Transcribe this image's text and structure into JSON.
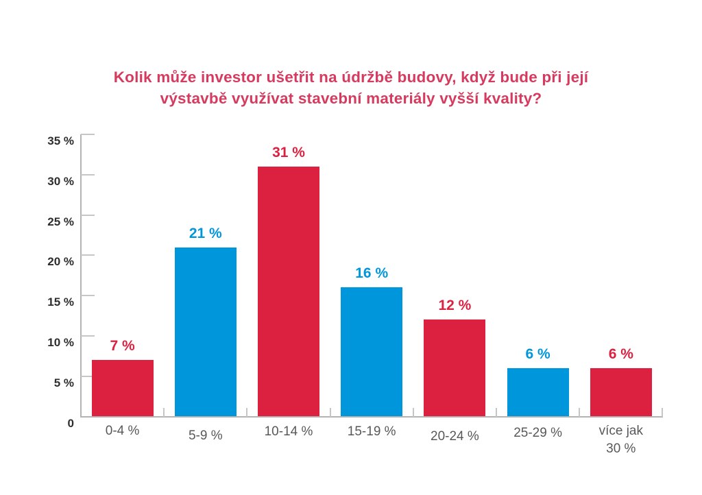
{
  "title": {
    "lines": [
      "Kolik může investor ušetřit na údržbě budovy, když bude při její",
      "výstavbě využívat stavební materiály vyšší kvality?"
    ],
    "color": "#d63a5e"
  },
  "chart_data": {
    "type": "bar",
    "title": "Kolik může investor ušetřit na údržbě budovy, když bude při její výstavbě využívat stavební materiály vyšší kvality?",
    "categories": [
      "0-4 %",
      "5-9 %",
      "10-14 %",
      "15-19 %",
      "20-24 %",
      "25-29 %",
      "více jak\n30 %"
    ],
    "values": [
      7,
      21,
      31,
      16,
      12,
      6,
      6
    ],
    "value_labels": [
      "7 %",
      "21 %",
      "31 %",
      "16 %",
      "12 %",
      "6 %",
      "6 %"
    ],
    "bar_colors": [
      "#dc2140",
      "#0096db",
      "#dc2140",
      "#0096db",
      "#dc2140",
      "#0096db",
      "#dc2140"
    ],
    "xlabel": "",
    "ylabel": "",
    "ylim": [
      0,
      35
    ],
    "ytick_step": 5,
    "ytick_labels": [
      "0",
      "5 %",
      "10 %",
      "15 %",
      "20 %",
      "25 %",
      "30 %",
      "35 %"
    ],
    "grid": false,
    "legend": "none",
    "colors": {
      "red": "#dc2140",
      "blue": "#0096db",
      "axis": "#b3b3b3",
      "tick": "#c6c6c6",
      "ytick_label": "#2d2d2d",
      "xtick_label": "#58585a"
    }
  }
}
